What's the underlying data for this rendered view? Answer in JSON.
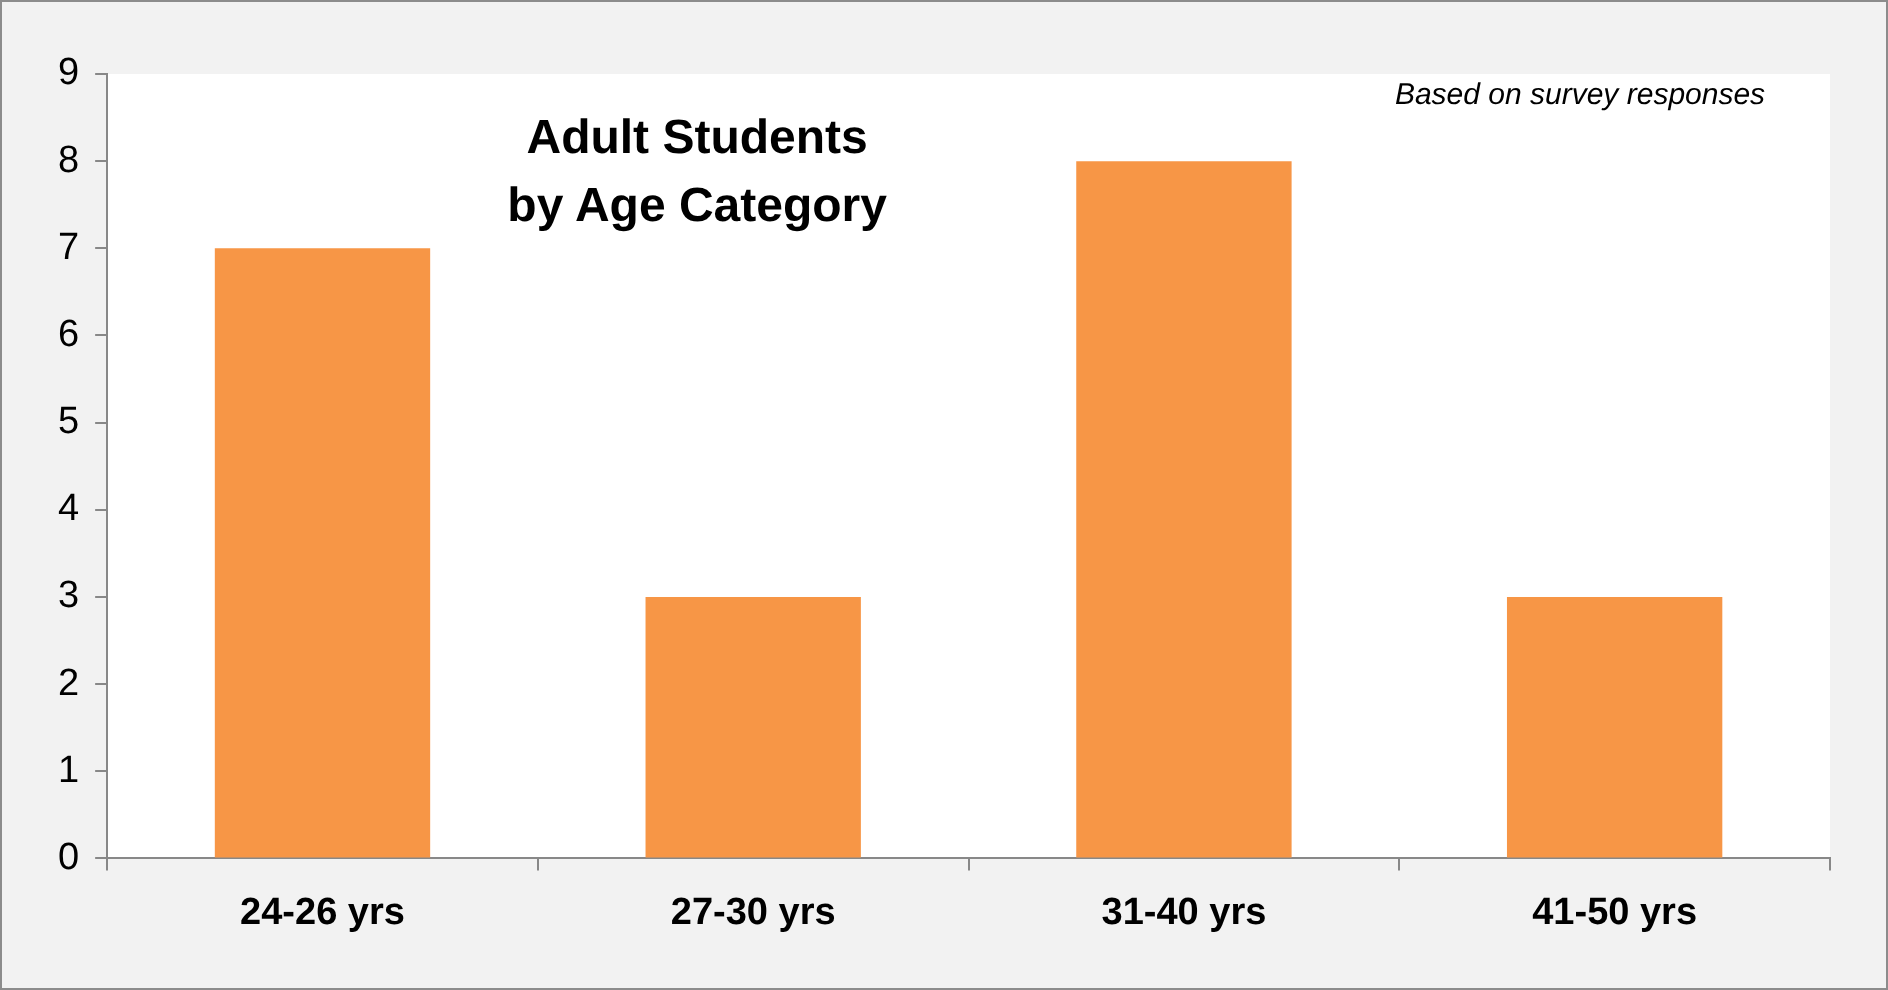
{
  "chart_data": {
    "type": "bar",
    "title": "Adult Students\nby Age Category",
    "categories": [
      "24-26 yrs",
      "27-30 yrs",
      "31-40 yrs",
      "41-50 yrs"
    ],
    "values": [
      7,
      3,
      8,
      3
    ],
    "color": "#f79646",
    "ylim": [
      0,
      9
    ],
    "yticks": [
      0,
      1,
      2,
      3,
      4,
      5,
      6,
      7,
      8,
      9
    ],
    "grid": false,
    "annotations": [
      "Based on survey responses"
    ]
  }
}
